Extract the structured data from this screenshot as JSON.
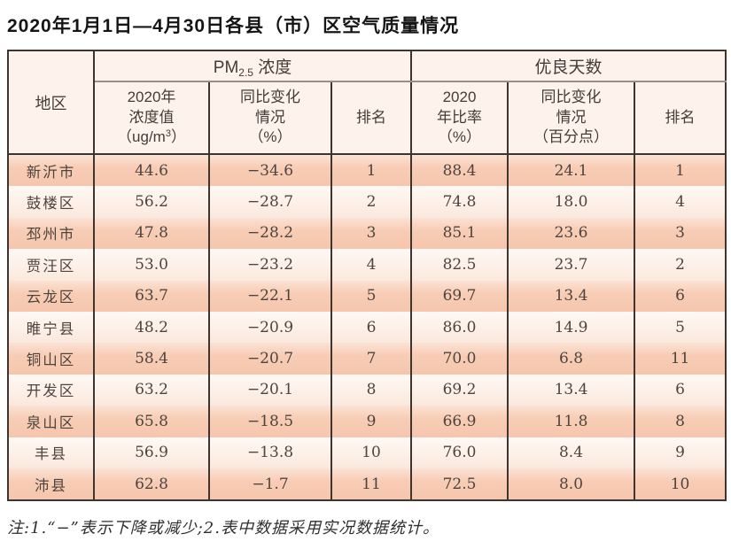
{
  "page": {
    "title": "2020年1月1日—4月30日各县（市）区空气质量情况",
    "note": "注:1.“−”表示下降或减少;2.表中数据采用实况数据统计。"
  },
  "colors": {
    "row_peach": "#f8cdb5",
    "row_cream": "#fdf0e8",
    "header_bg": "#fdf3ec",
    "border_dark": "#3e3531",
    "border_gray": "#9a8f89",
    "text_body": "#4e443f"
  },
  "table": {
    "region_header": "地区",
    "groups": {
      "pm_prefix": "PM",
      "pm_sub": "2.5",
      "pm_suffix": " 浓度",
      "good_days": "优良天数"
    },
    "subheaders": {
      "pm_value_l1": "2020年",
      "pm_value_l2": "浓度值",
      "pm_value_unit_a": "（ug/m",
      "pm_value_unit_sup": "3",
      "pm_value_unit_b": "）",
      "pm_change_l1": "同比变化",
      "pm_change_l2": "情况",
      "pm_change_l3": "（%）",
      "pm_rank": "排名",
      "rate_l1": "2020",
      "rate_l2": "年比率",
      "rate_l3": "（%）",
      "rate_change_l1": "同比变化",
      "rate_change_l2": "情况",
      "rate_change_l3": "（百分点）",
      "days_rank": "排名"
    },
    "rows": [
      {
        "region": "新沂市",
        "pm_value": "44.6",
        "pm_change": "−34.6",
        "pm_rank": "1",
        "days_rate": "88.4",
        "days_change": "24.1",
        "days_rank": "1"
      },
      {
        "region": "鼓楼区",
        "pm_value": "56.2",
        "pm_change": "−28.7",
        "pm_rank": "2",
        "days_rate": "74.8",
        "days_change": "18.0",
        "days_rank": "4"
      },
      {
        "region": "邳州市",
        "pm_value": "47.8",
        "pm_change": "−28.2",
        "pm_rank": "3",
        "days_rate": "85.1",
        "days_change": "23.6",
        "days_rank": "3"
      },
      {
        "region": "贾汪区",
        "pm_value": "53.0",
        "pm_change": "−23.2",
        "pm_rank": "4",
        "days_rate": "82.5",
        "days_change": "23.7",
        "days_rank": "2"
      },
      {
        "region": "云龙区",
        "pm_value": "63.7",
        "pm_change": "−22.1",
        "pm_rank": "5",
        "days_rate": "69.7",
        "days_change": "13.4",
        "days_rank": "6"
      },
      {
        "region": "睢宁县",
        "pm_value": "48.2",
        "pm_change": "−20.9",
        "pm_rank": "6",
        "days_rate": "86.0",
        "days_change": "14.9",
        "days_rank": "5"
      },
      {
        "region": "铜山区",
        "pm_value": "58.4",
        "pm_change": "−20.7",
        "pm_rank": "7",
        "days_rate": "70.0",
        "days_change": "6.8",
        "days_rank": "11"
      },
      {
        "region": "开发区",
        "pm_value": "63.2",
        "pm_change": "−20.1",
        "pm_rank": "8",
        "days_rate": "69.2",
        "days_change": "13.4",
        "days_rank": "6"
      },
      {
        "region": "泉山区",
        "pm_value": "65.8",
        "pm_change": "−18.5",
        "pm_rank": "9",
        "days_rate": "66.9",
        "days_change": "11.8",
        "days_rank": "8"
      },
      {
        "region": "丰县",
        "pm_value": "56.9",
        "pm_change": "−13.8",
        "pm_rank": "10",
        "days_rate": "76.0",
        "days_change": "8.4",
        "days_rank": "9"
      },
      {
        "region": "沛县",
        "pm_value": "62.8",
        "pm_change": "−1.7",
        "pm_rank": "11",
        "days_rate": "72.5",
        "days_change": "8.0",
        "days_rank": "10"
      }
    ]
  },
  "chart_data": {
    "type": "table",
    "title": "2020年1月1日—4月30日各县（市）区空气质量情况",
    "column_groups": [
      "PM2.5浓度",
      "优良天数"
    ],
    "columns": [
      "地区",
      "PM2.5 2020年浓度值（ug/m3）",
      "PM2.5同比变化情况（%）",
      "PM2.5排名",
      "优良天数2020年比率（%）",
      "优良天数同比变化情况（百分点）",
      "优良天数排名"
    ],
    "rows": [
      [
        "新沂市",
        44.6,
        -34.6,
        1,
        88.4,
        24.1,
        1
      ],
      [
        "鼓楼区",
        56.2,
        -28.7,
        2,
        74.8,
        18.0,
        4
      ],
      [
        "邳州市",
        47.8,
        -28.2,
        3,
        85.1,
        23.6,
        3
      ],
      [
        "贾汪区",
        53.0,
        -23.2,
        4,
        82.5,
        23.7,
        2
      ],
      [
        "云龙区",
        63.7,
        -22.1,
        5,
        69.7,
        13.4,
        6
      ],
      [
        "睢宁县",
        48.2,
        -20.9,
        6,
        86.0,
        14.9,
        5
      ],
      [
        "铜山区",
        58.4,
        -20.7,
        7,
        70.0,
        6.8,
        11
      ],
      [
        "开发区",
        63.2,
        -20.1,
        8,
        69.2,
        13.4,
        6
      ],
      [
        "泉山区",
        65.8,
        -18.5,
        9,
        66.9,
        11.8,
        8
      ],
      [
        "丰县",
        56.9,
        -13.8,
        10,
        76.0,
        8.4,
        9
      ],
      [
        "沛县",
        62.8,
        -1.7,
        11,
        72.5,
        8.0,
        10
      ]
    ],
    "note": "注:1.“−”表示下降或减少;2.表中数据采用实况数据统计。"
  }
}
